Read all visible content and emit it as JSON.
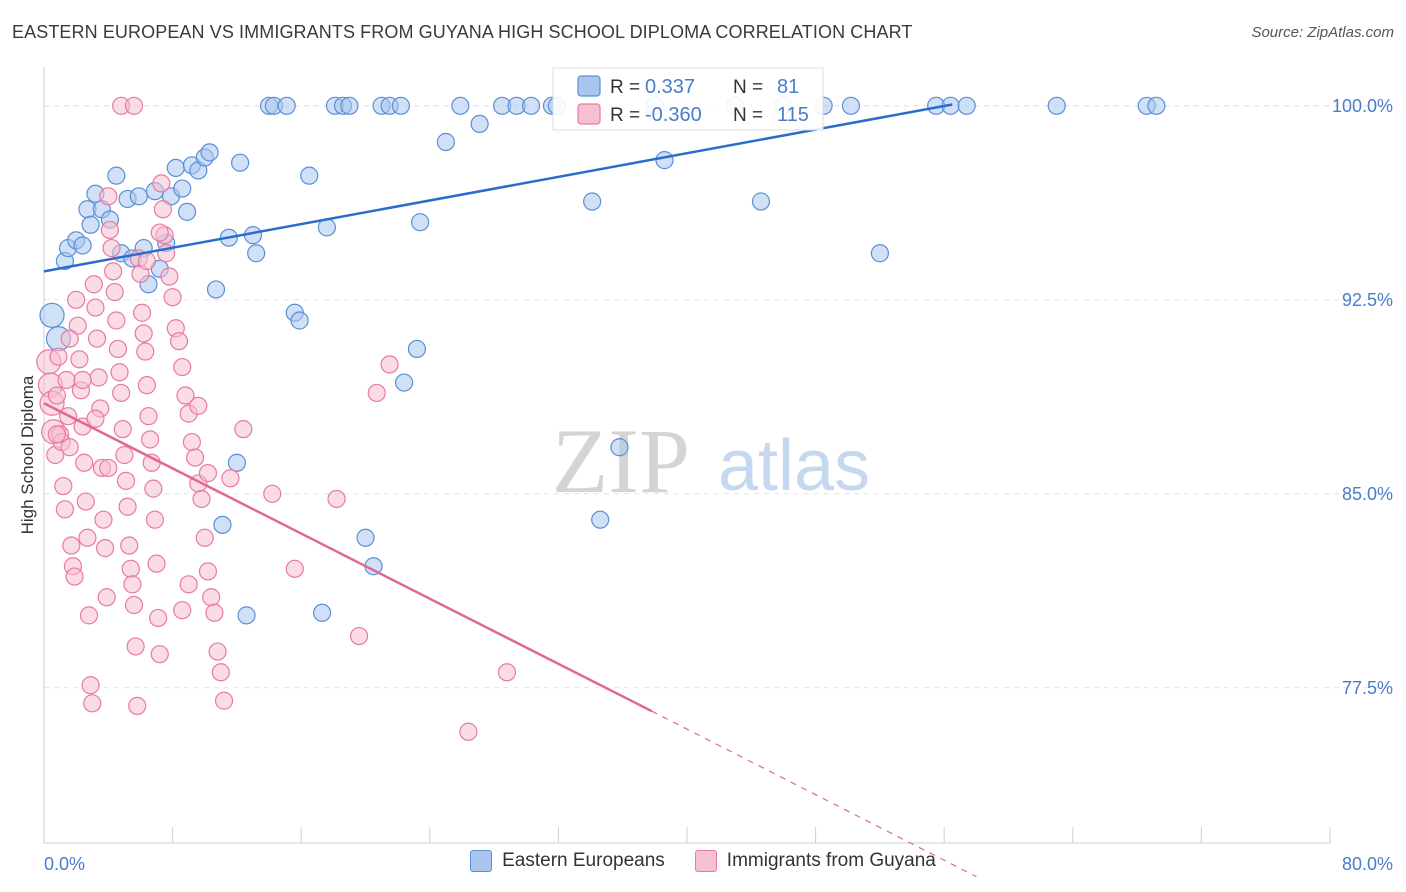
{
  "title": "EASTERN EUROPEAN VS IMMIGRANTS FROM GUYANA HIGH SCHOOL DIPLOMA CORRELATION CHART",
  "source": "Source: ZipAtlas.com",
  "watermark": {
    "zip": "ZIP",
    "atlas": "atlas"
  },
  "colors": {
    "blue": "#5b8fd6",
    "blue_fill": "#aac6ee",
    "blue_line": "#2a6ccc",
    "pink": "#e97aa0",
    "pink_fill": "#f6bfd2",
    "pink_line": "#e06896",
    "tick_label": "#4a7cc9",
    "grid": "#e4e4e4"
  },
  "legend_box": [
    {
      "r_label": "R =",
      "r_value": "0.337",
      "n_label": "N =",
      "n_value": "81"
    },
    {
      "r_label": "R =",
      "r_value": "-0.360",
      "n_label": "N =",
      "n_value": "115"
    }
  ],
  "chart_data": {
    "type": "scatter",
    "title": "EASTERN EUROPEAN VS IMMIGRANTS FROM GUYANA HIGH SCHOOL DIPLOMA CORRELATION CHART",
    "xlabel": "",
    "ylabel": "High School Diploma",
    "xlim": [
      0,
      80
    ],
    "ylim": [
      71.5,
      101.5
    ],
    "x_tick_labels": [
      "0.0%",
      "80.0%"
    ],
    "y_ticks": [
      77.5,
      85.0,
      92.5,
      100.0
    ],
    "y_tick_labels": [
      "77.5%",
      "85.0%",
      "92.5%",
      "100.0%"
    ],
    "series": [
      {
        "name": "Eastern Europeans",
        "color": "#5b8fd6",
        "r": 0.337,
        "n": 81,
        "trend": {
          "x": [
            0,
            56.5
          ],
          "y": [
            93.6,
            100.05
          ]
        },
        "points": [
          [
            0.5,
            91.9
          ],
          [
            0.9,
            91.0
          ],
          [
            1.3,
            94.0
          ],
          [
            1.5,
            94.5
          ],
          [
            2.0,
            94.8
          ],
          [
            2.4,
            94.6
          ],
          [
            2.7,
            96.0
          ],
          [
            2.9,
            95.4
          ],
          [
            3.2,
            96.6
          ],
          [
            3.6,
            96.0
          ],
          [
            4.1,
            95.6
          ],
          [
            4.5,
            97.3
          ],
          [
            4.8,
            94.3
          ],
          [
            5.2,
            96.4
          ],
          [
            5.5,
            94.1
          ],
          [
            5.9,
            96.5
          ],
          [
            6.2,
            94.5
          ],
          [
            6.5,
            93.1
          ],
          [
            6.9,
            96.7
          ],
          [
            7.2,
            93.7
          ],
          [
            7.6,
            94.7
          ],
          [
            7.9,
            96.5
          ],
          [
            8.2,
            97.6
          ],
          [
            8.6,
            96.8
          ],
          [
            8.9,
            95.9
          ],
          [
            9.2,
            97.7
          ],
          [
            9.6,
            97.5
          ],
          [
            10.0,
            98.0
          ],
          [
            10.3,
            98.2
          ],
          [
            10.7,
            92.9
          ],
          [
            11.1,
            83.8
          ],
          [
            11.5,
            94.9
          ],
          [
            12.0,
            86.2
          ],
          [
            12.2,
            97.8
          ],
          [
            12.6,
            80.3
          ],
          [
            13.0,
            95.0
          ],
          [
            13.2,
            94.3
          ],
          [
            14.0,
            100.0
          ],
          [
            14.3,
            100.0
          ],
          [
            15.1,
            100.0
          ],
          [
            15.6,
            92.0
          ],
          [
            15.9,
            91.7
          ],
          [
            16.5,
            97.3
          ],
          [
            17.3,
            80.4
          ],
          [
            17.6,
            95.3
          ],
          [
            18.1,
            100.0
          ],
          [
            18.6,
            100.0
          ],
          [
            19.0,
            100.0
          ],
          [
            20.0,
            83.3
          ],
          [
            20.5,
            82.2
          ],
          [
            21.0,
            100.0
          ],
          [
            21.5,
            100.0
          ],
          [
            22.2,
            100.0
          ],
          [
            22.4,
            89.3
          ],
          [
            23.4,
            95.5
          ],
          [
            23.2,
            90.6
          ],
          [
            25.0,
            98.6
          ],
          [
            25.9,
            100.0
          ],
          [
            27.1,
            99.3
          ],
          [
            28.5,
            100.0
          ],
          [
            29.4,
            100.0
          ],
          [
            30.3,
            100.0
          ],
          [
            31.6,
            100.0
          ],
          [
            31.9,
            100.0
          ],
          [
            34.1,
            96.3
          ],
          [
            34.6,
            84.0
          ],
          [
            35.8,
            86.8
          ],
          [
            38.0,
            100.0
          ],
          [
            38.6,
            97.9
          ],
          [
            43.0,
            100.0
          ],
          [
            44.6,
            96.3
          ],
          [
            46.0,
            100.0
          ],
          [
            48.5,
            100.0
          ],
          [
            50.2,
            100.0
          ],
          [
            52.0,
            94.3
          ],
          [
            55.5,
            100.0
          ],
          [
            56.4,
            100.0
          ],
          [
            57.4,
            100.0
          ],
          [
            63.0,
            100.0
          ],
          [
            68.6,
            100.0
          ],
          [
            69.2,
            100.0
          ]
        ]
      },
      {
        "name": "Immigrants from Guyana",
        "color": "#e97aa0",
        "r": -0.36,
        "n": 115,
        "trend": {
          "x": [
            0,
            37.8
          ],
          "y": [
            88.5,
            76.6
          ]
        },
        "trend_dashed": {
          "x": [
            37.8,
            58.0
          ],
          "y": [
            76.6,
            70.2
          ]
        },
        "points": [
          [
            0.3,
            90.1
          ],
          [
            0.4,
            89.2
          ],
          [
            0.5,
            88.5
          ],
          [
            0.6,
            87.4
          ],
          [
            0.7,
            86.5
          ],
          [
            0.8,
            88.8
          ],
          [
            0.9,
            90.3
          ],
          [
            1.0,
            87.3
          ],
          [
            1.1,
            87.0
          ],
          [
            1.2,
            85.3
          ],
          [
            1.3,
            84.4
          ],
          [
            1.4,
            89.4
          ],
          [
            1.5,
            88.0
          ],
          [
            1.6,
            86.8
          ],
          [
            1.7,
            83.0
          ],
          [
            1.8,
            82.2
          ],
          [
            1.9,
            81.8
          ],
          [
            2.0,
            92.5
          ],
          [
            2.1,
            91.5
          ],
          [
            2.2,
            90.2
          ],
          [
            2.3,
            89.0
          ],
          [
            2.4,
            87.6
          ],
          [
            2.5,
            86.2
          ],
          [
            2.6,
            84.7
          ],
          [
            2.7,
            83.3
          ],
          [
            2.8,
            80.3
          ],
          [
            2.9,
            77.6
          ],
          [
            3.0,
            76.9
          ],
          [
            3.1,
            93.1
          ],
          [
            3.2,
            92.2
          ],
          [
            3.3,
            91.0
          ],
          [
            3.4,
            89.5
          ],
          [
            3.5,
            88.3
          ],
          [
            3.6,
            86.0
          ],
          [
            3.7,
            84.0
          ],
          [
            3.8,
            82.9
          ],
          [
            3.9,
            81.0
          ],
          [
            4.0,
            96.5
          ],
          [
            4.1,
            95.2
          ],
          [
            4.2,
            94.5
          ],
          [
            4.3,
            93.6
          ],
          [
            4.4,
            92.8
          ],
          [
            4.5,
            91.7
          ],
          [
            4.6,
            90.6
          ],
          [
            4.7,
            89.7
          ],
          [
            4.8,
            88.9
          ],
          [
            4.9,
            87.5
          ],
          [
            5.0,
            86.5
          ],
          [
            5.1,
            85.5
          ],
          [
            5.2,
            84.5
          ],
          [
            5.3,
            83.0
          ],
          [
            5.4,
            82.1
          ],
          [
            5.5,
            81.5
          ],
          [
            5.6,
            80.7
          ],
          [
            5.7,
            79.1
          ],
          [
            5.8,
            76.8
          ],
          [
            5.9,
            94.1
          ],
          [
            6.0,
            93.5
          ],
          [
            6.1,
            92.0
          ],
          [
            6.2,
            91.2
          ],
          [
            6.3,
            90.5
          ],
          [
            6.4,
            89.2
          ],
          [
            6.5,
            88.0
          ],
          [
            6.6,
            87.1
          ],
          [
            6.7,
            86.2
          ],
          [
            6.8,
            85.2
          ],
          [
            6.9,
            84.0
          ],
          [
            7.0,
            82.3
          ],
          [
            7.1,
            80.2
          ],
          [
            7.2,
            78.8
          ],
          [
            7.3,
            97.0
          ],
          [
            7.4,
            96.0
          ],
          [
            7.5,
            95.0
          ],
          [
            7.6,
            94.3
          ],
          [
            7.8,
            93.4
          ],
          [
            8.0,
            92.6
          ],
          [
            8.2,
            91.4
          ],
          [
            8.4,
            90.9
          ],
          [
            8.6,
            89.9
          ],
          [
            8.8,
            88.8
          ],
          [
            9.0,
            88.1
          ],
          [
            9.2,
            87.0
          ],
          [
            9.4,
            86.4
          ],
          [
            9.6,
            85.4
          ],
          [
            9.8,
            84.8
          ],
          [
            10.0,
            83.3
          ],
          [
            10.2,
            82.0
          ],
          [
            10.4,
            81.0
          ],
          [
            10.6,
            80.4
          ],
          [
            10.8,
            78.9
          ],
          [
            11.0,
            78.1
          ],
          [
            11.2,
            77.0
          ],
          [
            0.8,
            87.3
          ],
          [
            1.6,
            91.0
          ],
          [
            2.4,
            89.4
          ],
          [
            3.2,
            87.9
          ],
          [
            4.0,
            86.0
          ],
          [
            4.8,
            100.0
          ],
          [
            5.6,
            100.0
          ],
          [
            6.4,
            94.0
          ],
          [
            7.2,
            95.1
          ],
          [
            8.6,
            80.5
          ],
          [
            9.0,
            81.5
          ],
          [
            9.6,
            88.4
          ],
          [
            10.2,
            85.8
          ],
          [
            11.6,
            85.6
          ],
          [
            12.4,
            87.5
          ],
          [
            14.2,
            85.0
          ],
          [
            15.6,
            82.1
          ],
          [
            18.2,
            84.8
          ],
          [
            19.6,
            79.5
          ],
          [
            20.7,
            88.9
          ],
          [
            21.5,
            90.0
          ],
          [
            26.4,
            75.8
          ],
          [
            28.8,
            78.1
          ]
        ]
      }
    ]
  },
  "chart_legend": [
    "Eastern Europeans",
    "Immigrants from Guyana"
  ]
}
